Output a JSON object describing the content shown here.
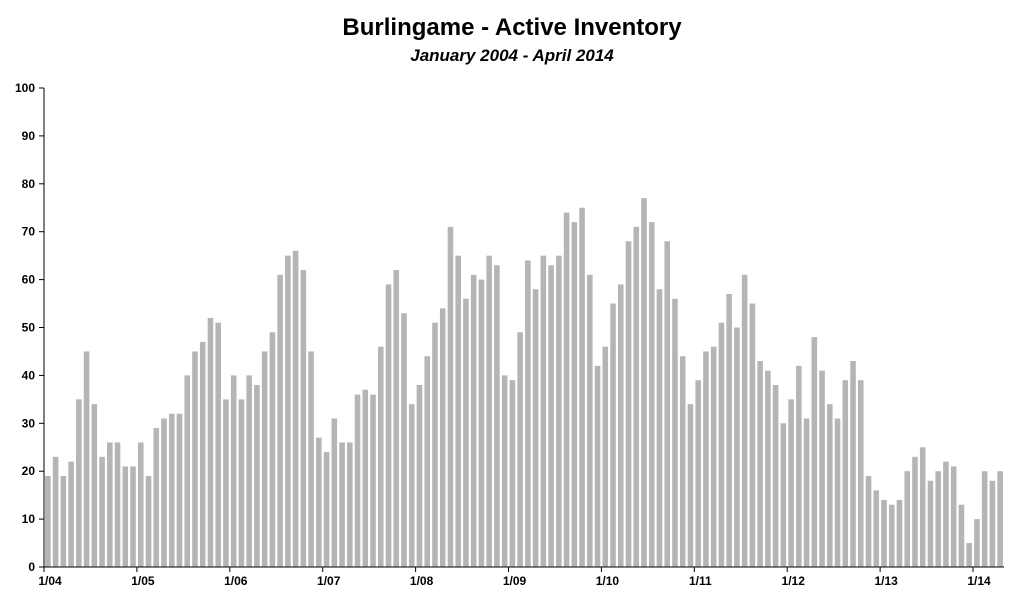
{
  "chart_data": {
    "type": "bar",
    "title": "Burlingame - Active Inventory",
    "subtitle": "January 2004 - April 2014",
    "xlabel": "",
    "ylabel": "",
    "ylim": [
      0,
      100
    ],
    "yticks": [
      0,
      10,
      20,
      30,
      40,
      50,
      60,
      70,
      80,
      90,
      100
    ],
    "xtick_labels": [
      "1/04",
      "1/05",
      "1/06",
      "1/07",
      "1/08",
      "1/09",
      "1/10",
      "1/11",
      "1/12",
      "1/13",
      "1/14"
    ],
    "bar_color": "#b5b5b5",
    "grid": false,
    "legend": "none",
    "categories": [
      "1/04",
      "2/04",
      "3/04",
      "4/04",
      "5/04",
      "6/04",
      "7/04",
      "8/04",
      "9/04",
      "10/04",
      "11/04",
      "12/04",
      "1/05",
      "2/05",
      "3/05",
      "4/05",
      "5/05",
      "6/05",
      "7/05",
      "8/05",
      "9/05",
      "10/05",
      "11/05",
      "12/05",
      "1/06",
      "2/06",
      "3/06",
      "4/06",
      "5/06",
      "6/06",
      "7/06",
      "8/06",
      "9/06",
      "10/06",
      "11/06",
      "12/06",
      "1/07",
      "2/07",
      "3/07",
      "4/07",
      "5/07",
      "6/07",
      "7/07",
      "8/07",
      "9/07",
      "10/07",
      "11/07",
      "12/07",
      "1/08",
      "2/08",
      "3/08",
      "4/08",
      "5/08",
      "6/08",
      "7/08",
      "8/08",
      "9/08",
      "10/08",
      "11/08",
      "12/08",
      "1/09",
      "2/09",
      "3/09",
      "4/09",
      "5/09",
      "6/09",
      "7/09",
      "8/09",
      "9/09",
      "10/09",
      "11/09",
      "12/09",
      "1/10",
      "2/10",
      "3/10",
      "4/10",
      "5/10",
      "6/10",
      "7/10",
      "8/10",
      "9/10",
      "10/10",
      "11/10",
      "12/10",
      "1/11",
      "2/11",
      "3/11",
      "4/11",
      "5/11",
      "6/11",
      "7/11",
      "8/11",
      "9/11",
      "10/11",
      "11/11",
      "12/11",
      "1/12",
      "2/12",
      "3/12",
      "4/12",
      "5/12",
      "6/12",
      "7/12",
      "8/12",
      "9/12",
      "10/12",
      "11/12",
      "12/12",
      "1/13",
      "2/13",
      "3/13",
      "4/13",
      "5/13",
      "6/13",
      "7/13",
      "8/13",
      "9/13",
      "10/13",
      "11/13",
      "12/13",
      "1/14",
      "2/14",
      "3/14",
      "4/14"
    ],
    "values": [
      19,
      23,
      19,
      22,
      35,
      45,
      34,
      23,
      26,
      26,
      21,
      21,
      26,
      19,
      29,
      31,
      32,
      32,
      40,
      45,
      47,
      52,
      51,
      35,
      40,
      35,
      40,
      38,
      45,
      49,
      61,
      65,
      66,
      62,
      45,
      27,
      24,
      31,
      26,
      26,
      36,
      37,
      36,
      46,
      59,
      62,
      53,
      34,
      38,
      44,
      51,
      54,
      71,
      65,
      56,
      61,
      60,
      65,
      63,
      40,
      39,
      49,
      64,
      58,
      65,
      63,
      65,
      74,
      72,
      75,
      61,
      42,
      46,
      55,
      59,
      68,
      71,
      77,
      72,
      58,
      68,
      56,
      44,
      34,
      39,
      45,
      46,
      51,
      57,
      50,
      61,
      55,
      43,
      41,
      38,
      30,
      35,
      42,
      31,
      48,
      41,
      34,
      31,
      39,
      43,
      39,
      19,
      16,
      14,
      13,
      14,
      20,
      23,
      25,
      18,
      20,
      22,
      21,
      13,
      5,
      10,
      20,
      18,
      20
    ]
  }
}
